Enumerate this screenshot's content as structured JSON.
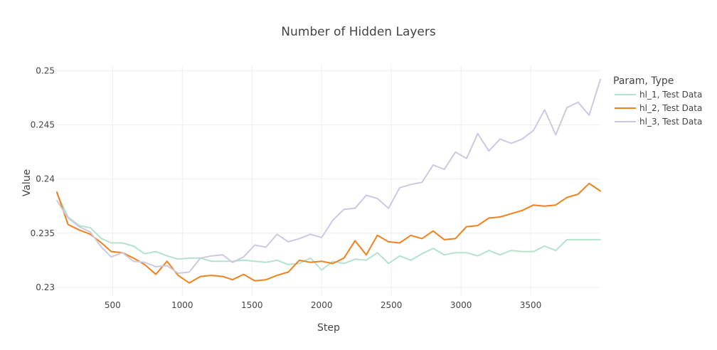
{
  "chart_data": {
    "type": "line",
    "title": "Number of Hidden Layers",
    "xlabel": "Step",
    "ylabel": "Value",
    "xlim": [
      100,
      4000
    ],
    "ylim": [
      0.2292,
      0.2505
    ],
    "x_ticks": [
      500,
      1000,
      1500,
      2000,
      2500,
      3000,
      3500
    ],
    "x_tick_labels": [
      "500",
      "1000",
      "1500",
      "2000",
      "2500",
      "3000",
      "3500"
    ],
    "y_ticks": [
      0.23,
      0.235,
      0.24,
      0.245,
      0.25
    ],
    "y_tick_labels": [
      "0.23",
      "0.235",
      "0.24",
      "0.245",
      "0.25"
    ],
    "grid": true,
    "legend": {
      "title": "Param, Type",
      "placement": "right"
    },
    "x": [
      100,
      180,
      260,
      340,
      420,
      490,
      570,
      650,
      730,
      810,
      890,
      970,
      1050,
      1130,
      1210,
      1290,
      1360,
      1440,
      1520,
      1600,
      1680,
      1760,
      1840,
      1920,
      2000,
      2080,
      2160,
      2240,
      2320,
      2400,
      2480,
      2560,
      2640,
      2720,
      2800,
      2880,
      2960,
      3040,
      3120,
      3200,
      3280,
      3360,
      3440,
      3520,
      3600,
      3680,
      3760,
      3840,
      3920,
      4000
    ],
    "series": [
      {
        "name": "hl_1, Test Data",
        "color": "#b3e2cd",
        "values": [
          0.2387,
          0.2365,
          0.2357,
          0.2355,
          0.2345,
          0.2341,
          0.2341,
          0.2338,
          0.2331,
          0.2333,
          0.2329,
          0.2326,
          0.2327,
          0.2327,
          0.2324,
          0.2324,
          0.2324,
          0.2325,
          0.2324,
          0.2323,
          0.2325,
          0.2321,
          0.2322,
          0.2327,
          0.2316,
          0.2324,
          0.2322,
          0.2326,
          0.2325,
          0.2332,
          0.2322,
          0.2329,
          0.2325,
          0.2331,
          0.2336,
          0.233,
          0.2332,
          0.2332,
          0.2329,
          0.2334,
          0.233,
          0.2334,
          0.2333,
          0.2333,
          0.2338,
          0.2334,
          0.2344,
          0.2344,
          0.2344,
          0.2344
        ]
      },
      {
        "name": "hl_2, Test Data",
        "color": "#f1801d",
        "values": [
          0.2388,
          0.2358,
          0.2353,
          0.2349,
          0.2341,
          0.2333,
          0.2332,
          0.2327,
          0.2321,
          0.2312,
          0.2324,
          0.2311,
          0.2304,
          0.231,
          0.2311,
          0.231,
          0.2307,
          0.2312,
          0.2306,
          0.2307,
          0.2311,
          0.2314,
          0.2325,
          0.2323,
          0.2324,
          0.2322,
          0.2327,
          0.2343,
          0.233,
          0.2348,
          0.2342,
          0.2341,
          0.2348,
          0.2345,
          0.2352,
          0.2344,
          0.2345,
          0.2356,
          0.2357,
          0.2364,
          0.2365,
          0.2368,
          0.2371,
          0.2376,
          0.2375,
          0.2376,
          0.2383,
          0.2386,
          0.2396,
          0.2389
        ]
      },
      {
        "name": "hl_3, Test Data",
        "color": "#cbc9e2",
        "values": [
          0.238,
          0.2364,
          0.2356,
          0.2351,
          0.2337,
          0.2328,
          0.2332,
          0.2324,
          0.2323,
          0.2319,
          0.232,
          0.2313,
          0.2314,
          0.2327,
          0.2329,
          0.233,
          0.2323,
          0.2328,
          0.2339,
          0.2337,
          0.2349,
          0.2342,
          0.2345,
          0.2349,
          0.2346,
          0.2362,
          0.2372,
          0.2373,
          0.2385,
          0.2382,
          0.2373,
          0.2392,
          0.2395,
          0.2397,
          0.2413,
          0.2409,
          0.2425,
          0.2419,
          0.2442,
          0.2426,
          0.2437,
          0.2433,
          0.2437,
          0.2445,
          0.2464,
          0.2441,
          0.2466,
          0.2471,
          0.2459,
          0.2492
        ]
      }
    ]
  }
}
